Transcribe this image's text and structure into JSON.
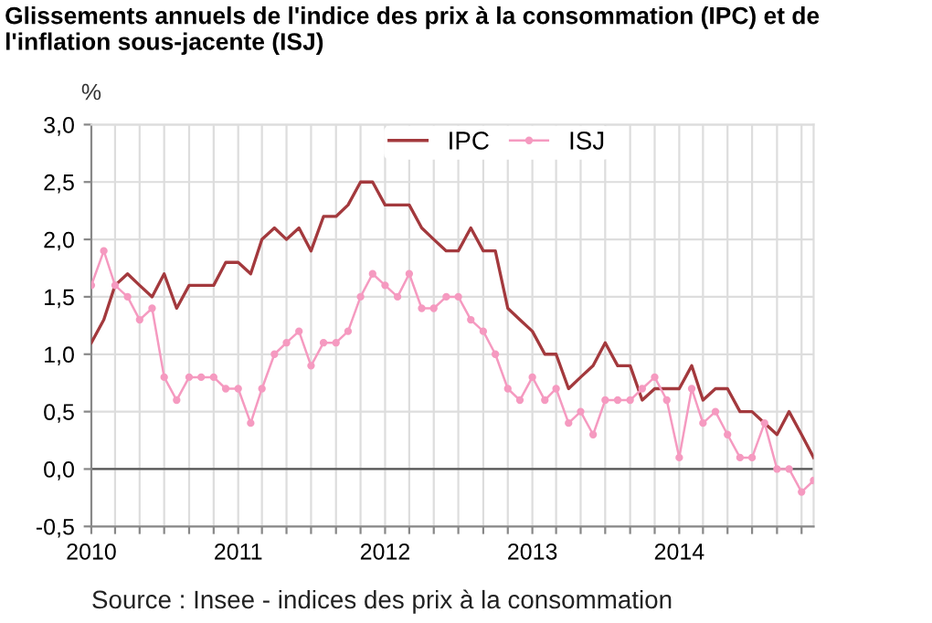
{
  "chart_data": {
    "type": "line",
    "title": "Glissements annuels de l'indice des prix à la consommation (IPC) et de l'inflation sous-jacente (ISJ)",
    "ylabel": "%",
    "x": [
      "2010-01",
      "2010-02",
      "2010-03",
      "2010-04",
      "2010-05",
      "2010-06",
      "2010-07",
      "2010-08",
      "2010-09",
      "2010-10",
      "2010-11",
      "2010-12",
      "2011-01",
      "2011-02",
      "2011-03",
      "2011-04",
      "2011-05",
      "2011-06",
      "2011-07",
      "2011-08",
      "2011-09",
      "2011-10",
      "2011-11",
      "2011-12",
      "2012-01",
      "2012-02",
      "2012-03",
      "2012-04",
      "2012-05",
      "2012-06",
      "2012-07",
      "2012-08",
      "2012-09",
      "2012-10",
      "2012-11",
      "2012-12",
      "2013-01",
      "2013-02",
      "2013-03",
      "2013-04",
      "2013-05",
      "2013-06",
      "2013-07",
      "2013-08",
      "2013-09",
      "2013-10",
      "2013-11",
      "2013-12",
      "2014-01",
      "2014-02",
      "2014-03",
      "2014-04",
      "2014-05",
      "2014-06",
      "2014-07",
      "2014-08",
      "2014-09",
      "2014-10",
      "2014-11",
      "2014-12"
    ],
    "series": [
      {
        "name": "IPC",
        "color": "#a3393d",
        "marker": "none",
        "values": [
          1.1,
          1.3,
          1.6,
          1.7,
          1.6,
          1.5,
          1.7,
          1.4,
          1.6,
          1.6,
          1.6,
          1.8,
          1.8,
          1.7,
          2.0,
          2.1,
          2.0,
          2.1,
          1.9,
          2.2,
          2.2,
          2.3,
          2.5,
          2.5,
          2.3,
          2.3,
          2.3,
          2.1,
          2.0,
          1.9,
          1.9,
          2.1,
          1.9,
          1.9,
          1.4,
          1.3,
          1.2,
          1.0,
          1.0,
          0.7,
          0.8,
          0.9,
          1.1,
          0.9,
          0.9,
          0.6,
          0.7,
          0.7,
          0.7,
          0.9,
          0.6,
          0.7,
          0.7,
          0.5,
          0.5,
          0.4,
          0.3,
          0.5,
          0.3,
          0.1
        ]
      },
      {
        "name": "ISJ",
        "color": "#f59ac0",
        "marker": "circle",
        "values": [
          1.6,
          1.9,
          1.6,
          1.5,
          1.3,
          1.4,
          0.8,
          0.6,
          0.8,
          0.8,
          0.8,
          0.7,
          0.7,
          0.4,
          0.7,
          1.0,
          1.1,
          1.2,
          0.9,
          1.1,
          1.1,
          1.2,
          1.5,
          1.7,
          1.6,
          1.5,
          1.7,
          1.4,
          1.4,
          1.5,
          1.5,
          1.3,
          1.2,
          1.0,
          0.7,
          0.6,
          0.8,
          0.6,
          0.7,
          0.4,
          0.5,
          0.3,
          0.6,
          0.6,
          0.6,
          0.7,
          0.8,
          0.6,
          0.1,
          0.7,
          0.4,
          0.5,
          0.3,
          0.1,
          0.1,
          0.4,
          0.0,
          0.0,
          -0.2,
          -0.1
        ]
      }
    ],
    "xlim": [
      "2010-01",
      "2014-12"
    ],
    "xticks": [
      {
        "value": "2010-01",
        "label": "2010"
      },
      {
        "value": "2010-03",
        "label": null
      },
      {
        "value": "2010-05",
        "label": null
      },
      {
        "value": "2010-07",
        "label": null
      },
      {
        "value": "2010-09",
        "label": null
      },
      {
        "value": "2010-11",
        "label": null
      },
      {
        "value": "2011-01",
        "label": "2011"
      },
      {
        "value": "2011-03",
        "label": null
      },
      {
        "value": "2011-05",
        "label": null
      },
      {
        "value": "2011-07",
        "label": null
      },
      {
        "value": "2011-09",
        "label": null
      },
      {
        "value": "2011-11",
        "label": null
      },
      {
        "value": "2012-01",
        "label": "2012"
      },
      {
        "value": "2012-03",
        "label": null
      },
      {
        "value": "2012-05",
        "label": null
      },
      {
        "value": "2012-07",
        "label": null
      },
      {
        "value": "2012-09",
        "label": null
      },
      {
        "value": "2012-11",
        "label": null
      },
      {
        "value": "2013-01",
        "label": "2013"
      },
      {
        "value": "2013-03",
        "label": null
      },
      {
        "value": "2013-05",
        "label": null
      },
      {
        "value": "2013-07",
        "label": null
      },
      {
        "value": "2013-09",
        "label": null
      },
      {
        "value": "2013-11",
        "label": null
      },
      {
        "value": "2014-01",
        "label": "2014"
      },
      {
        "value": "2014-03",
        "label": null
      },
      {
        "value": "2014-05",
        "label": null
      },
      {
        "value": "2014-07",
        "label": null
      },
      {
        "value": "2014-09",
        "label": null
      },
      {
        "value": "2014-11",
        "label": null
      }
    ],
    "ylim": [
      -0.5,
      3.0
    ],
    "yticks": [
      {
        "value": -0.5,
        "label": "-0,5"
      },
      {
        "value": 0,
        "label": "0,0"
      },
      {
        "value": 0.5,
        "label": "0,5"
      },
      {
        "value": 1,
        "label": "1,0"
      },
      {
        "value": 1.5,
        "label": "1,5"
      },
      {
        "value": 2,
        "label": "2,0"
      },
      {
        "value": 2.5,
        "label": "2,5"
      },
      {
        "value": 3,
        "label": "3,0"
      }
    ],
    "grid": true,
    "legend": "top right",
    "line_style": "solid",
    "annotations": [
      "Source : Insee - indices des prix à la consommation"
    ]
  }
}
